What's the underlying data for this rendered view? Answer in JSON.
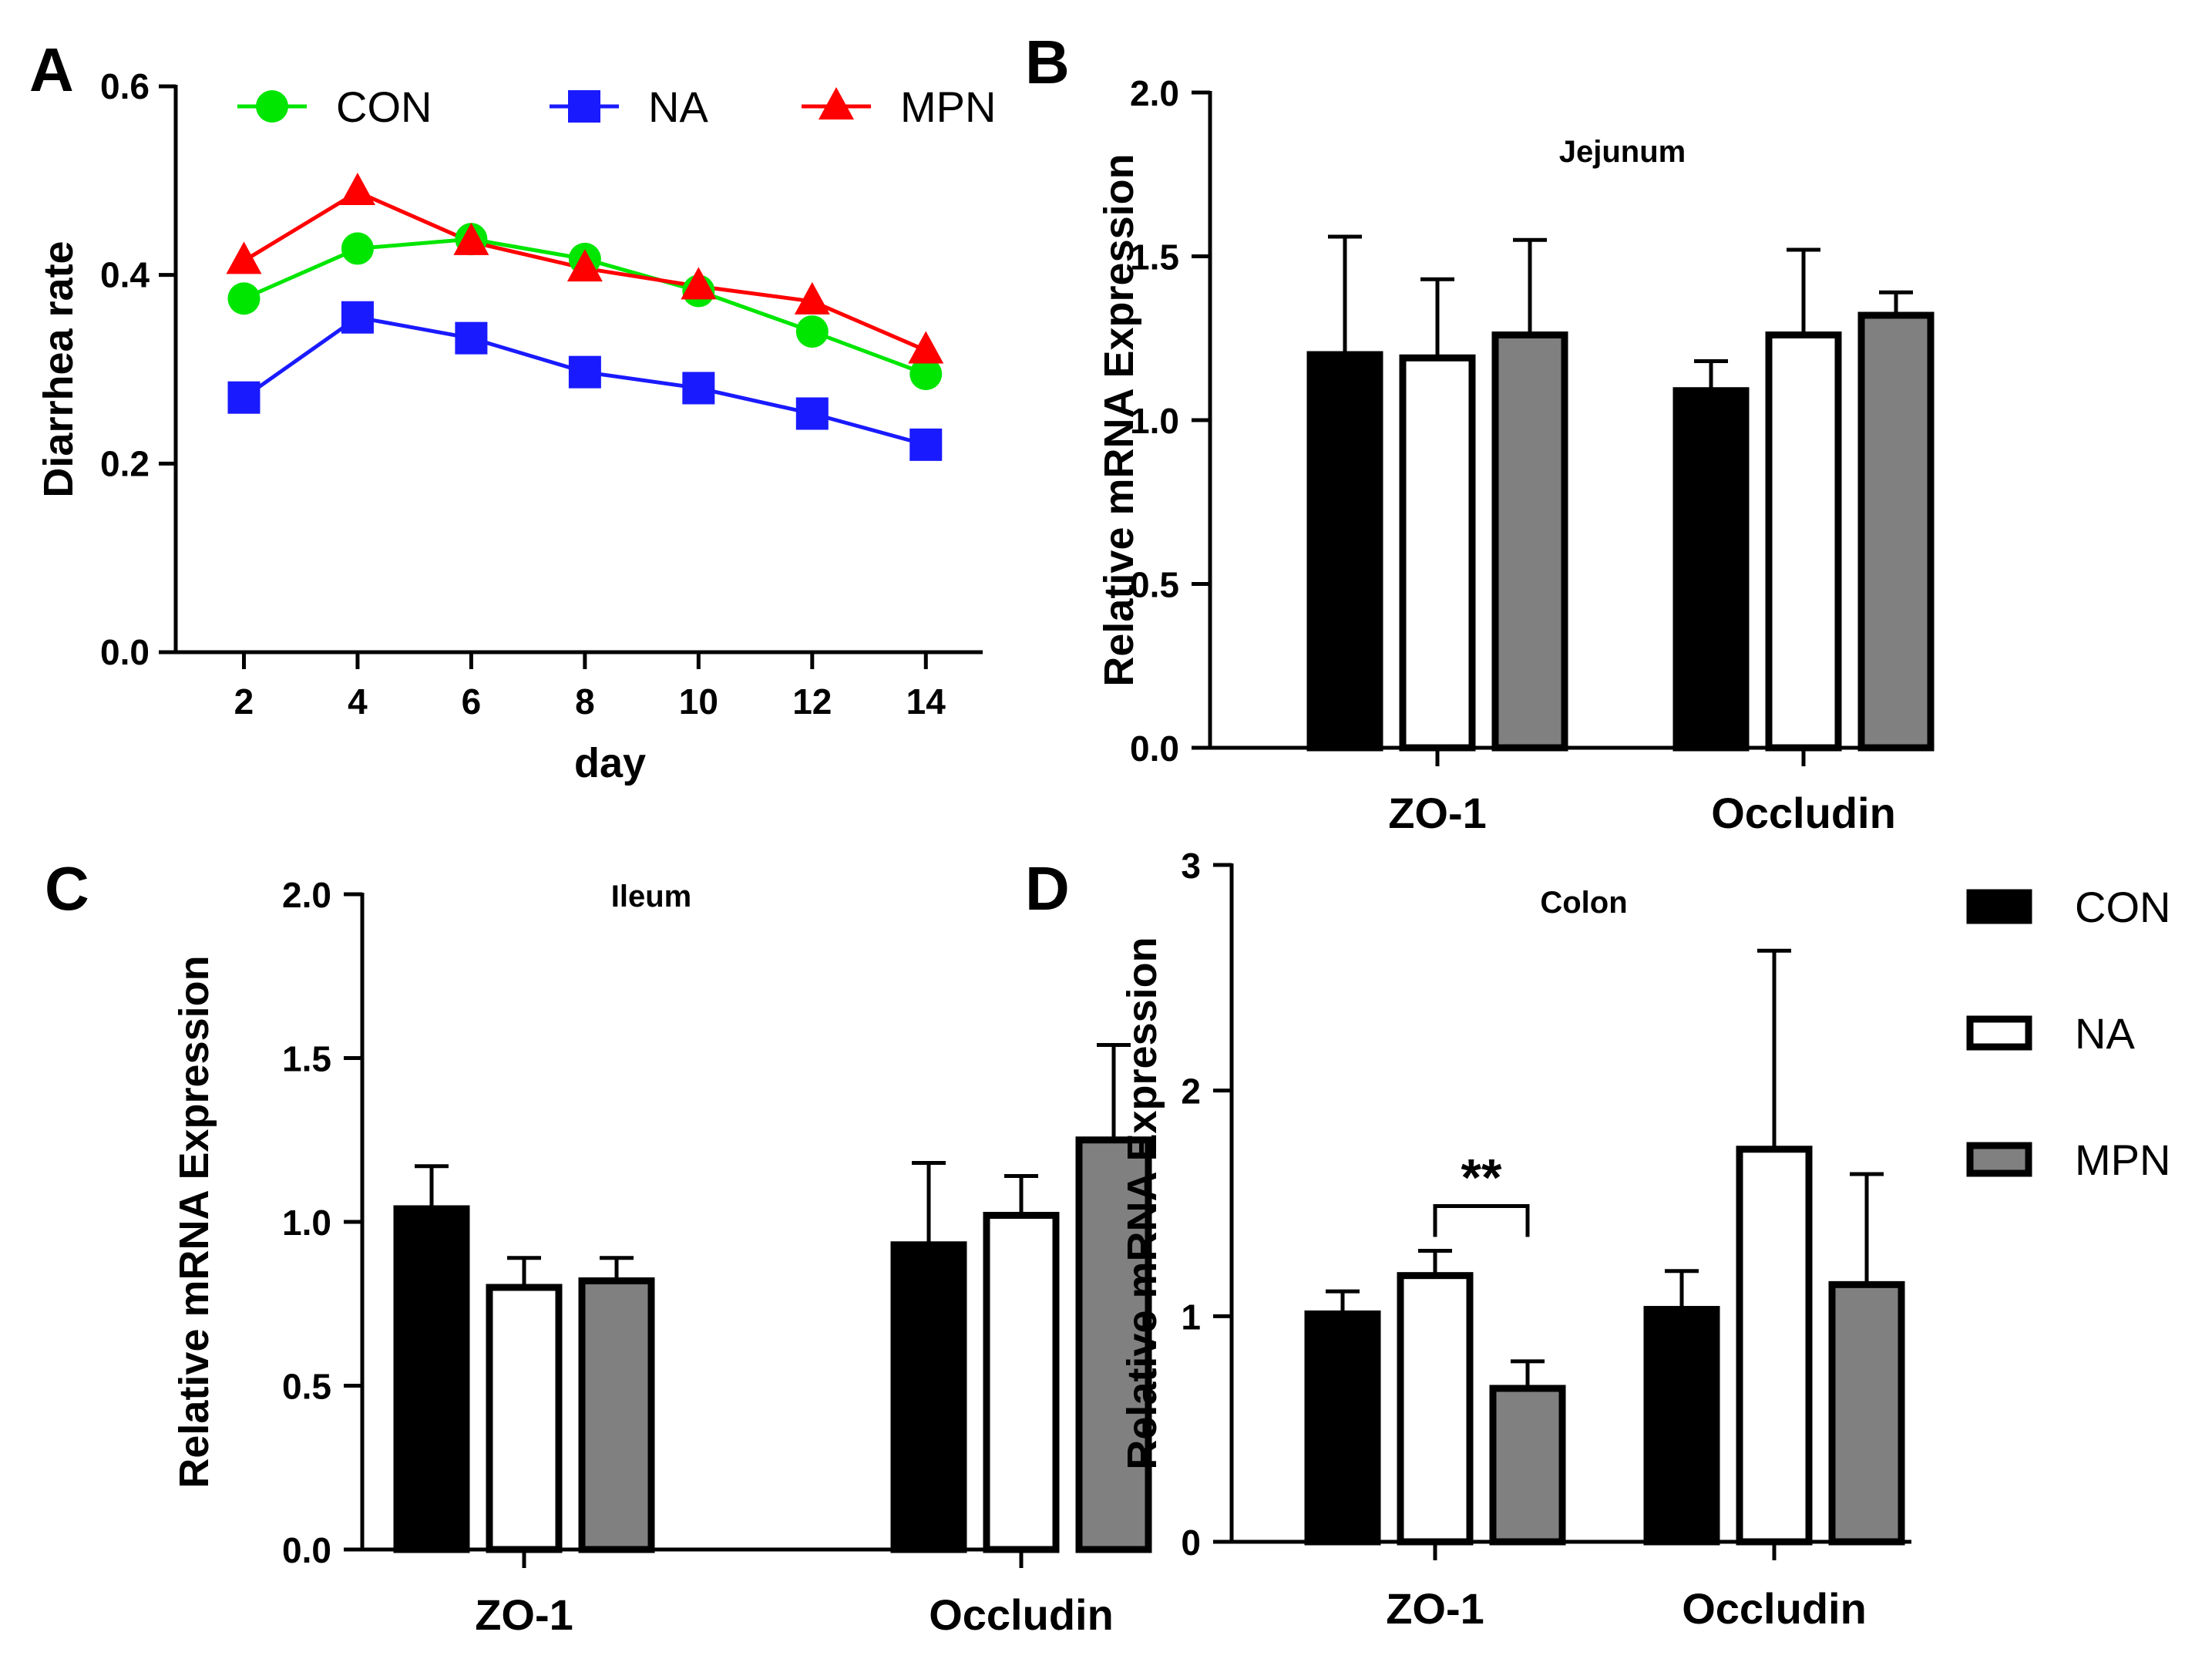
{
  "colors": {
    "con_line": "#00e600",
    "na_line": "#1a1aff",
    "mpn_line": "#ff0000",
    "con_bar": "#000000",
    "na_bar": "#ffffff",
    "mpn_bar": "#808080"
  },
  "chart_data": [
    {
      "panel": "A",
      "type": "line",
      "xlabel": "day",
      "ylabel": "Diarrhea rate",
      "x": [
        2,
        4,
        6,
        8,
        10,
        12,
        14
      ],
      "xlim": [
        0.8,
        15
      ],
      "ylim": [
        0,
        0.6
      ],
      "yticks": [
        "0.0",
        "0.2",
        "0.4",
        "0.6"
      ],
      "series": [
        {
          "name": "CON",
          "marker": "circle",
          "values": [
            0.375,
            0.428,
            0.438,
            0.417,
            0.383,
            0.34,
            0.295
          ]
        },
        {
          "name": "NA",
          "marker": "square",
          "values": [
            0.27,
            0.355,
            0.333,
            0.297,
            0.28,
            0.253,
            0.22
          ]
        },
        {
          "name": "MPN",
          "marker": "triangle",
          "values": [
            0.415,
            0.488,
            0.435,
            0.407,
            0.388,
            0.372,
            0.32
          ]
        }
      ],
      "legend": [
        "CON",
        "NA",
        "MPN"
      ]
    },
    {
      "panel": "B",
      "type": "bar",
      "title": "Jejunum",
      "ylabel": "Relative mRNA Expression",
      "categories": [
        "ZO-1",
        "Occludin"
      ],
      "ylim": [
        0,
        2.0
      ],
      "yticks": [
        "0.0",
        "0.5",
        "1.0",
        "1.5",
        "2.0"
      ],
      "series": [
        {
          "name": "CON",
          "values": [
            1.2,
            1.09
          ],
          "errors": [
            0.36,
            0.09
          ]
        },
        {
          "name": "NA",
          "values": [
            1.19,
            1.26
          ],
          "errors": [
            0.24,
            0.26
          ]
        },
        {
          "name": "MPN",
          "values": [
            1.26,
            1.32
          ],
          "errors": [
            0.29,
            0.07
          ]
        }
      ]
    },
    {
      "panel": "C",
      "type": "bar",
      "title": "Ileum",
      "ylabel": "Relative mRNA Expression",
      "categories": [
        "ZO-1",
        "Occludin"
      ],
      "ylim": [
        0,
        2.0
      ],
      "yticks": [
        "0.0",
        "0.5",
        "1.0",
        "1.5",
        "2.0"
      ],
      "series": [
        {
          "name": "CON",
          "values": [
            1.04,
            0.93
          ],
          "errors": [
            0.13,
            0.25
          ]
        },
        {
          "name": "NA",
          "values": [
            0.8,
            1.02
          ],
          "errors": [
            0.09,
            0.12
          ]
        },
        {
          "name": "MPN",
          "values": [
            0.82,
            1.25
          ],
          "errors": [
            0.07,
            0.29
          ]
        }
      ]
    },
    {
      "panel": "D",
      "type": "bar",
      "title": "Colon",
      "ylabel": "Relative mRNA Expression",
      "categories": [
        "ZO-1",
        "Occludin"
      ],
      "ylim": [
        0,
        3
      ],
      "yticks": [
        "0",
        "1",
        "2",
        "3"
      ],
      "series": [
        {
          "name": "CON",
          "values": [
            1.01,
            1.03
          ],
          "errors": [
            0.1,
            0.17
          ]
        },
        {
          "name": "NA",
          "values": [
            1.18,
            1.74
          ],
          "errors": [
            0.11,
            0.88
          ]
        },
        {
          "name": "MPN",
          "values": [
            0.68,
            1.14
          ],
          "errors": [
            0.12,
            0.49
          ]
        }
      ],
      "significance": {
        "label": "**",
        "from_series": 1,
        "to_series": 2,
        "category": 0
      },
      "legend": [
        "CON",
        "NA",
        "MPN"
      ]
    }
  ]
}
